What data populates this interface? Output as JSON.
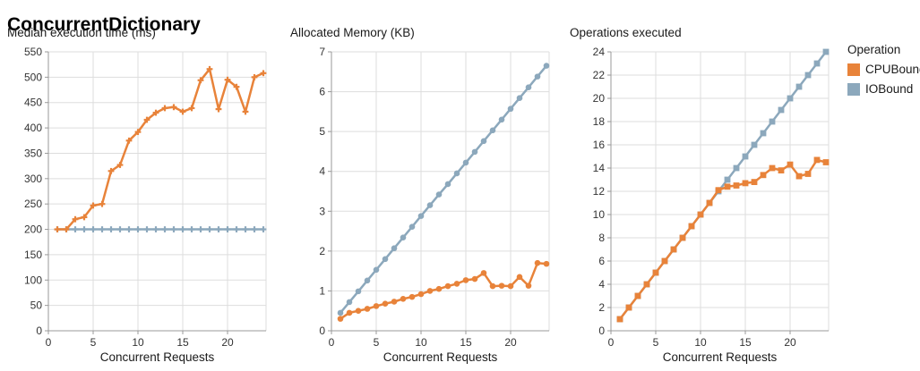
{
  "page": {
    "title": "ConcurrentDictionary"
  },
  "legend": {
    "title": "Operation",
    "items": [
      {
        "label": "CPUBound",
        "color": "#E8833A"
      },
      {
        "label": "IOBound",
        "color": "#8CA8BC"
      }
    ]
  },
  "colors": {
    "cpubound": "#E8833A",
    "iobound": "#8CA8BC",
    "grid": "#DDDDDD",
    "axis": "#999999",
    "tick_text": "#333333"
  },
  "chart_data": [
    {
      "type": "line",
      "title": "Median execution time (ms)",
      "xlabel": "Concurrent Requests",
      "ylabel": "",
      "x": [
        1,
        2,
        3,
        4,
        5,
        6,
        7,
        8,
        9,
        10,
        11,
        12,
        13,
        14,
        15,
        16,
        17,
        18,
        19,
        20,
        21,
        22,
        23,
        24
      ],
      "xlim": [
        0,
        24.3
      ],
      "xticks": [
        0,
        5,
        10,
        15,
        20
      ],
      "ylim": [
        0,
        550
      ],
      "ytick_step": 50,
      "grid": true,
      "marker": "plus",
      "series": [
        {
          "name": "CPUBound",
          "color": "#E8833A",
          "values": [
            200,
            200,
            220,
            224,
            247,
            250,
            315,
            327,
            375,
            392,
            416,
            430,
            439,
            441,
            432,
            439,
            494,
            516,
            437,
            495,
            481,
            432,
            500,
            508
          ]
        },
        {
          "name": "IOBound",
          "color": "#8CA8BC",
          "values": [
            200,
            200,
            200,
            200,
            200,
            200,
            200,
            200,
            200,
            200,
            200,
            200,
            200,
            200,
            200,
            200,
            200,
            200,
            200,
            200,
            200,
            200,
            200,
            200
          ]
        }
      ]
    },
    {
      "type": "line",
      "title": "Allocated Memory (KB)",
      "xlabel": "Concurrent Requests",
      "ylabel": "",
      "x": [
        1,
        2,
        3,
        4,
        5,
        6,
        7,
        8,
        9,
        10,
        11,
        12,
        13,
        14,
        15,
        16,
        17,
        18,
        19,
        20,
        21,
        22,
        23,
        24
      ],
      "xlim": [
        0,
        24.3
      ],
      "xticks": [
        0,
        5,
        10,
        15,
        20
      ],
      "ylim": [
        0,
        7
      ],
      "ytick_step": 1,
      "grid": true,
      "marker": "circle",
      "series": [
        {
          "name": "CPUBound",
          "color": "#E8833A",
          "values": [
            0.3,
            0.45,
            0.5,
            0.55,
            0.62,
            0.68,
            0.73,
            0.8,
            0.85,
            0.92,
            1.0,
            1.05,
            1.12,
            1.18,
            1.27,
            1.3,
            1.45,
            1.12,
            1.13,
            1.12,
            1.35,
            1.13,
            1.7,
            1.68
          ]
        },
        {
          "name": "IOBound",
          "color": "#8CA8BC",
          "values": [
            0.45,
            0.72,
            0.99,
            1.26,
            1.53,
            1.8,
            2.07,
            2.34,
            2.61,
            2.88,
            3.15,
            3.42,
            3.68,
            3.95,
            4.22,
            4.49,
            4.76,
            5.03,
            5.3,
            5.57,
            5.84,
            6.11,
            6.38,
            6.65
          ]
        }
      ]
    },
    {
      "type": "line",
      "title": "Operations executed",
      "xlabel": "Concurrent Requests",
      "ylabel": "",
      "x": [
        1,
        2,
        3,
        4,
        5,
        6,
        7,
        8,
        9,
        10,
        11,
        12,
        13,
        14,
        15,
        16,
        17,
        18,
        19,
        20,
        21,
        22,
        23,
        24
      ],
      "xlim": [
        0,
        24.3
      ],
      "xticks": [
        0,
        5,
        10,
        15,
        20
      ],
      "ylim": [
        0,
        24
      ],
      "ytick_step": 2,
      "grid": true,
      "marker": "square",
      "series": [
        {
          "name": "CPUBound",
          "color": "#E8833A",
          "values": [
            1,
            2,
            3,
            4,
            5,
            6,
            7,
            8,
            9,
            10,
            11,
            12.1,
            12.4,
            12.5,
            12.7,
            12.8,
            13.4,
            14.0,
            13.8,
            14.3,
            13.3,
            13.5,
            14.7,
            14.5
          ]
        },
        {
          "name": "IOBound",
          "color": "#8CA8BC",
          "values": [
            1,
            2,
            3,
            4,
            5,
            6,
            7,
            8,
            9,
            10,
            11,
            12,
            13,
            14,
            15,
            16,
            17,
            18,
            19,
            20,
            21,
            22,
            23,
            24
          ]
        }
      ]
    }
  ]
}
